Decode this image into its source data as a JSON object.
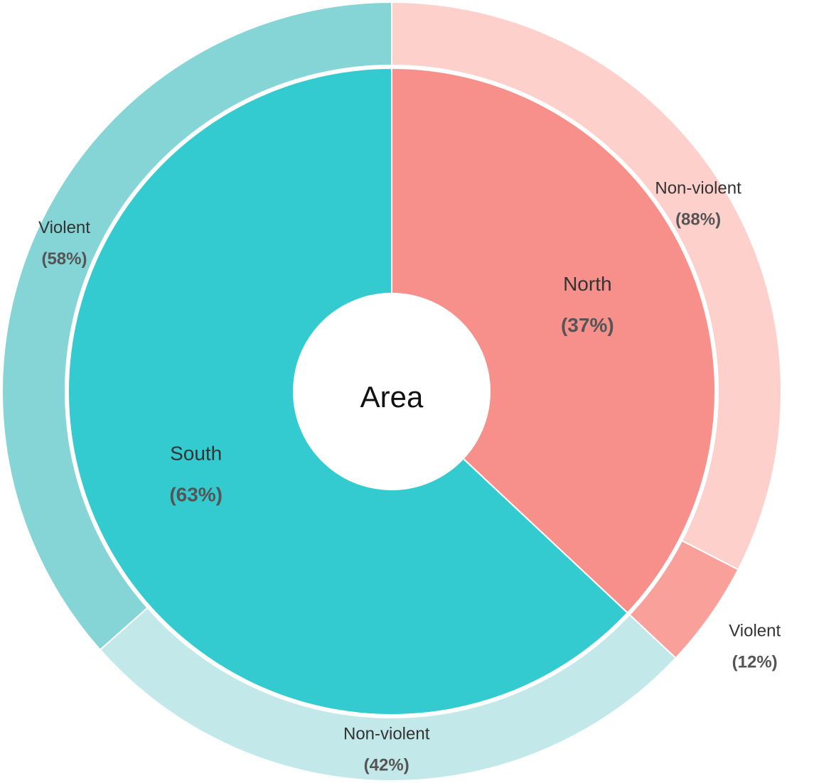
{
  "chart_data": {
    "type": "sunburst",
    "center_label": "Area",
    "categories": [
      "North",
      "South"
    ],
    "values": [
      37,
      63
    ],
    "value_labels": [
      "(37%)",
      "(63%)"
    ],
    "colors": [
      "#f78f8a",
      "#33cbd0"
    ],
    "children": [
      {
        "categories": [
          "Non-violent",
          "Violent"
        ],
        "values": [
          88,
          12
        ],
        "value_labels": [
          "(88%)",
          "(12%)"
        ],
        "colors": [
          "#fdd0cc",
          "#f9a09a"
        ]
      },
      {
        "categories": [
          "Non-violent",
          "Violent"
        ],
        "values": [
          42,
          58
        ],
        "value_labels": [
          "(42%)",
          "(58%)"
        ],
        "colors": [
          "#c2e8ea",
          "#85d4d6"
        ]
      }
    ]
  }
}
